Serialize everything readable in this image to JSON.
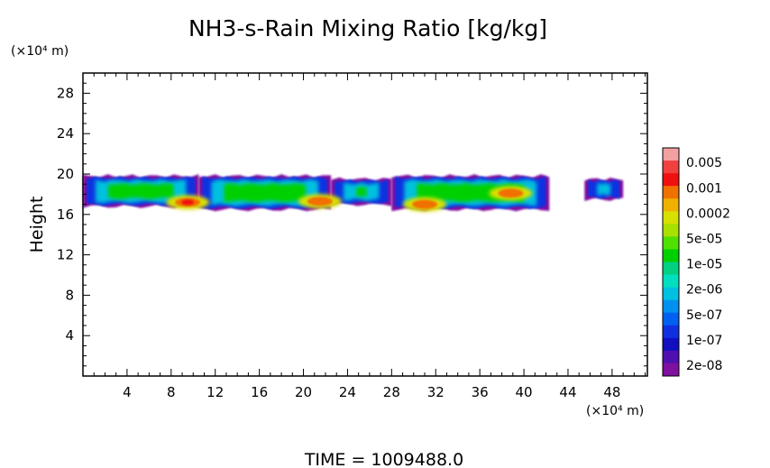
{
  "chart_data": {
    "type": "heatmap",
    "title": "NH3-s-Rain Mixing Ratio [kg/kg]",
    "ylabel": "Height",
    "y_unit_label": "(×10⁴ m)",
    "x_unit_label": "(×10⁴ m)",
    "xlim": [
      0,
      51.2
    ],
    "ylim": [
      0,
      30
    ],
    "x_ticks": [
      4,
      8,
      12,
      16,
      20,
      24,
      28,
      32,
      36,
      40,
      44,
      48
    ],
    "y_ticks": [
      4,
      8,
      12,
      16,
      20,
      24,
      28
    ],
    "colorbar": {
      "labels": [
        "0.005",
        "0.001",
        "0.0002",
        "5e-05",
        "1e-05",
        "2e-06",
        "5e-07",
        "1e-07",
        "2e-08"
      ],
      "colors": [
        "#f2a0a0",
        "#f04040",
        "#f01010",
        "#f07000",
        "#f0b000",
        "#d8e000",
        "#a8e000",
        "#50e000",
        "#00d000",
        "#00d080",
        "#00e0c0",
        "#00c0e0",
        "#0090f0",
        "#0060f0",
        "#1030e0",
        "#1010c0",
        "#5010b0",
        "#8010a0"
      ]
    },
    "cloud_band": {
      "y_range": [
        16.5,
        19.8
      ],
      "segments": [
        {
          "x": [
            0,
            10.5
          ],
          "y": [
            16.8,
            19.8
          ]
        },
        {
          "x": [
            10.5,
            22.5
          ],
          "y": [
            16.5,
            19.8
          ]
        },
        {
          "x": [
            22.5,
            28
          ],
          "y": [
            17.0,
            19.5
          ]
        },
        {
          "x": [
            28,
            42.3
          ],
          "y": [
            16.5,
            19.8
          ]
        },
        {
          "x": [
            45.5,
            49
          ],
          "y": [
            17.5,
            19.5
          ]
        }
      ],
      "peaks": [
        {
          "x": 9.5,
          "y": 17.2,
          "level": "0.001"
        },
        {
          "x": 21.5,
          "y": 17.3,
          "level": "0.0002"
        },
        {
          "x": 31,
          "y": 17.0,
          "level": "0.0002"
        },
        {
          "x": 38.8,
          "y": 18.1,
          "level": "0.0002"
        }
      ]
    },
    "footer": "TIME = 1009488.0"
  }
}
